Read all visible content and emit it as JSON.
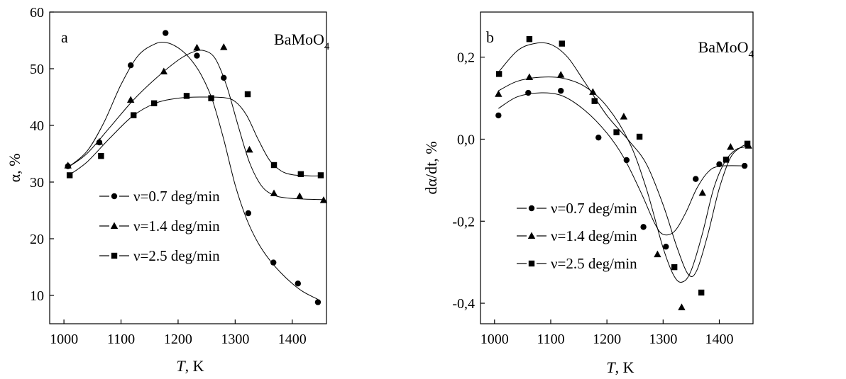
{
  "chart_data": [
    {
      "type": "scatter",
      "panel": "a",
      "annotation": "BaMoO",
      "annotation_sub": "4",
      "xlabel_italic": "T",
      "xlabel_rest": ", K",
      "ylabel": "α, %",
      "xlim": [
        975,
        1460
      ],
      "ylim": [
        5,
        60
      ],
      "xticks": [
        1000,
        1100,
        1200,
        1300,
        1400
      ],
      "xtick_labels": [
        "1000",
        "1100",
        "1200",
        "1300",
        "1400"
      ],
      "yticks": [
        10,
        20,
        30,
        40,
        50,
        60
      ],
      "ytick_labels": [
        "10",
        "20",
        "30",
        "40",
        "50",
        "60"
      ],
      "grid": false,
      "legend_position": "lower-left",
      "series": [
        {
          "name": "ν=0.7 deg/min",
          "marker": "circle",
          "points": [
            [
              1007,
              32.8
            ],
            [
              1062,
              37.0
            ],
            [
              1117,
              50.6
            ],
            [
              1178,
              56.3
            ],
            [
              1233,
              52.3
            ],
            [
              1280,
              48.4
            ],
            [
              1323,
              24.5
            ],
            [
              1367,
              15.8
            ],
            [
              1410,
              12.1
            ],
            [
              1445,
              8.8
            ]
          ],
          "fit": [
            [
              1007,
              32.6
            ],
            [
              1040,
              35.4
            ],
            [
              1070,
              40.5
            ],
            [
              1100,
              47.2
            ],
            [
              1130,
              52.3
            ],
            [
              1160,
              54.4
            ],
            [
              1180,
              54.6
            ],
            [
              1200,
              53.7
            ],
            [
              1220,
              51.9
            ],
            [
              1240,
              49.0
            ],
            [
              1260,
              44.5
            ],
            [
              1280,
              37.5
            ],
            [
              1300,
              29.5
            ],
            [
              1320,
              23.5
            ],
            [
              1340,
              19.3
            ],
            [
              1360,
              16.3
            ],
            [
              1380,
              14.0
            ],
            [
              1400,
              12.1
            ],
            [
              1420,
              10.6
            ],
            [
              1445,
              9.3
            ]
          ]
        },
        {
          "name": "ν=1.4 deg/min",
          "marker": "triangle",
          "points": [
            [
              1007,
              32.9
            ],
            [
              1062,
              37.1
            ],
            [
              1117,
              44.5
            ],
            [
              1175,
              49.5
            ],
            [
              1233,
              53.7
            ],
            [
              1280,
              53.8
            ],
            [
              1325,
              35.7
            ],
            [
              1368,
              28.0
            ],
            [
              1413,
              27.5
            ],
            [
              1455,
              26.8
            ]
          ],
          "fit": [
            [
              1007,
              32.6
            ],
            [
              1040,
              35.0
            ],
            [
              1080,
              39.6
            ],
            [
              1120,
              44.3
            ],
            [
              1160,
              48.2
            ],
            [
              1200,
              51.5
            ],
            [
              1225,
              52.9
            ],
            [
              1245,
              53.2
            ],
            [
              1265,
              51.8
            ],
            [
              1285,
              47.0
            ],
            [
              1305,
              40.0
            ],
            [
              1325,
              33.5
            ],
            [
              1345,
              29.5
            ],
            [
              1365,
              27.8
            ],
            [
              1390,
              27.2
            ],
            [
              1420,
              27.0
            ],
            [
              1455,
              26.9
            ]
          ]
        },
        {
          "name": "ν=2.5 deg/min",
          "marker": "square",
          "points": [
            [
              1010,
              31.2
            ],
            [
              1065,
              34.6
            ],
            [
              1122,
              41.8
            ],
            [
              1158,
              43.9
            ],
            [
              1215,
              45.2
            ],
            [
              1258,
              44.8
            ],
            [
              1322,
              45.5
            ],
            [
              1368,
              33.0
            ],
            [
              1415,
              31.4
            ],
            [
              1450,
              31.2
            ]
          ],
          "fit": [
            [
              1010,
              31.3
            ],
            [
              1040,
              33.5
            ],
            [
              1080,
              37.7
            ],
            [
              1120,
              41.6
            ],
            [
              1160,
              43.9
            ],
            [
              1200,
              44.8
            ],
            [
              1240,
              45.0
            ],
            [
              1280,
              44.9
            ],
            [
              1300,
              44.2
            ],
            [
              1320,
              41.8
            ],
            [
              1340,
              37.6
            ],
            [
              1360,
              33.9
            ],
            [
              1380,
              32.0
            ],
            [
              1400,
              31.3
            ],
            [
              1430,
              31.1
            ],
            [
              1455,
              31.1
            ]
          ]
        }
      ]
    },
    {
      "type": "scatter",
      "panel": "b",
      "annotation": "BaMoO",
      "annotation_sub": "4",
      "xlabel_italic": "T",
      "xlabel_rest": ", K",
      "ylabel": "dα/dt, %",
      "xlim": [
        975,
        1460
      ],
      "ylim": [
        -0.45,
        0.31
      ],
      "xticks": [
        1000,
        1100,
        1200,
        1300,
        1400
      ],
      "xtick_labels": [
        "1000",
        "1100",
        "1200",
        "1300",
        "1400"
      ],
      "yticks": [
        -0.4,
        -0.2,
        0.0,
        0.2
      ],
      "ytick_labels": [
        "-0,4",
        "-0,2",
        "0,0",
        "0,2"
      ],
      "grid": false,
      "legend_position": "lower-left",
      "series": [
        {
          "name": "ν=0.7 deg/min",
          "marker": "circle",
          "points": [
            [
              1007,
              0.058
            ],
            [
              1060,
              0.113
            ],
            [
              1118,
              0.118
            ],
            [
              1185,
              0.004
            ],
            [
              1235,
              -0.051
            ],
            [
              1265,
              -0.214
            ],
            [
              1305,
              -0.262
            ],
            [
              1358,
              -0.097
            ],
            [
              1400,
              -0.061
            ],
            [
              1445,
              -0.065
            ]
          ],
          "fit": [
            [
              1007,
              0.075
            ],
            [
              1040,
              0.103
            ],
            [
              1080,
              0.113
            ],
            [
              1120,
              0.106
            ],
            [
              1160,
              0.071
            ],
            [
              1200,
              0.015
            ],
            [
              1230,
              -0.045
            ],
            [
              1260,
              -0.128
            ],
            [
              1285,
              -0.205
            ],
            [
              1300,
              -0.232
            ],
            [
              1320,
              -0.225
            ],
            [
              1340,
              -0.18
            ],
            [
              1360,
              -0.12
            ],
            [
              1380,
              -0.08
            ],
            [
              1400,
              -0.066
            ],
            [
              1445,
              -0.065
            ]
          ]
        },
        {
          "name": "ν=1.4 deg/min",
          "marker": "triangle",
          "points": [
            [
              1007,
              0.11
            ],
            [
              1062,
              0.151
            ],
            [
              1118,
              0.157
            ],
            [
              1175,
              0.115
            ],
            [
              1230,
              0.055
            ],
            [
              1290,
              -0.281
            ],
            [
              1333,
              -0.41
            ],
            [
              1370,
              -0.131
            ],
            [
              1420,
              -0.019
            ],
            [
              1452,
              -0.016
            ]
          ],
          "fit": [
            [
              1007,
              0.118
            ],
            [
              1040,
              0.141
            ],
            [
              1080,
              0.151
            ],
            [
              1120,
              0.149
            ],
            [
              1160,
              0.129
            ],
            [
              1200,
              0.08
            ],
            [
              1240,
              -0.008
            ],
            [
              1270,
              -0.12
            ],
            [
              1300,
              -0.265
            ],
            [
              1320,
              -0.335
            ],
            [
              1335,
              -0.348
            ],
            [
              1350,
              -0.32
            ],
            [
              1370,
              -0.23
            ],
            [
              1390,
              -0.12
            ],
            [
              1410,
              -0.055
            ],
            [
              1430,
              -0.025
            ],
            [
              1452,
              -0.018
            ]
          ]
        },
        {
          "name": "ν=2.5 deg/min",
          "marker": "square",
          "points": [
            [
              1008,
              0.159
            ],
            [
              1062,
              0.244
            ],
            [
              1120,
              0.233
            ],
            [
              1178,
              0.093
            ],
            [
              1217,
              0.017
            ],
            [
              1258,
              0.006
            ],
            [
              1320,
              -0.312
            ],
            [
              1368,
              -0.374
            ],
            [
              1412,
              -0.05
            ],
            [
              1450,
              -0.011
            ]
          ],
          "fit": [
            [
              1008,
              0.165
            ],
            [
              1040,
              0.215
            ],
            [
              1070,
              0.233
            ],
            [
              1100,
              0.231
            ],
            [
              1130,
              0.2
            ],
            [
              1160,
              0.14
            ],
            [
              1200,
              0.058
            ],
            [
              1240,
              -0.005
            ],
            [
              1270,
              -0.06
            ],
            [
              1300,
              -0.16
            ],
            [
              1325,
              -0.265
            ],
            [
              1345,
              -0.33
            ],
            [
              1360,
              -0.32
            ],
            [
              1380,
              -0.23
            ],
            [
              1400,
              -0.12
            ],
            [
              1420,
              -0.045
            ],
            [
              1440,
              -0.018
            ],
            [
              1452,
              -0.012
            ]
          ]
        }
      ]
    }
  ]
}
